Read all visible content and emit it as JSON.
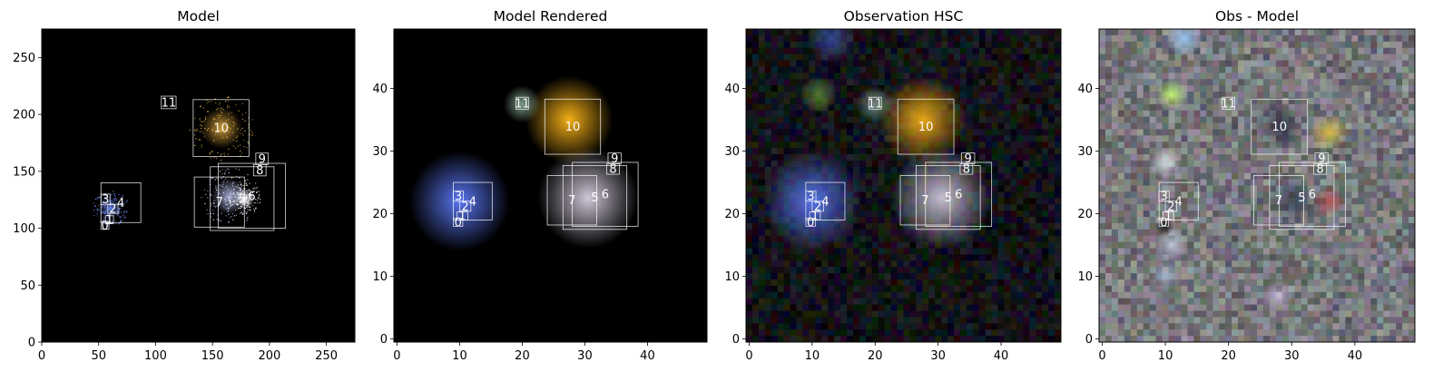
{
  "chart_data": [
    {
      "type": "heatmap",
      "title": "Model",
      "xlim": [
        0,
        275
      ],
      "ylim": [
        0,
        275
      ],
      "xticks": [
        0,
        50,
        100,
        150,
        200,
        250
      ],
      "yticks": [
        0,
        50,
        100,
        150,
        200,
        250
      ],
      "background": "#000000",
      "sources": [
        {
          "label": "0",
          "x0": 52,
          "x1": 59,
          "y0": 99,
          "y1": 106
        },
        {
          "label": "1",
          "x0": 56,
          "x1": 63,
          "y0": 104,
          "y1": 111
        },
        {
          "label": "2",
          "x0": 58,
          "x1": 67,
          "y0": 113,
          "y1": 121
        },
        {
          "label": "3",
          "x0": 52,
          "x1": 60,
          "y0": 121,
          "y1": 130
        },
        {
          "label": "4",
          "x0": 52,
          "x1": 87,
          "y0": 105,
          "y1": 140
        },
        {
          "label": "5",
          "x0": 148,
          "x1": 204,
          "y0": 98,
          "y1": 154
        },
        {
          "label": "6",
          "x0": 155,
          "x1": 214,
          "y0": 100,
          "y1": 157
        },
        {
          "label": "7",
          "x0": 134,
          "x1": 178,
          "y0": 101,
          "y1": 145
        },
        {
          "label": "8",
          "x0": 186,
          "x1": 197,
          "y0": 146,
          "y1": 156
        },
        {
          "label": "9",
          "x0": 188,
          "x1": 199,
          "y0": 156,
          "y1": 166
        },
        {
          "label": "10",
          "x0": 133,
          "x1": 182,
          "y0": 163,
          "y1": 213
        },
        {
          "label": "11",
          "x0": 105,
          "x1": 118,
          "y0": 205,
          "y1": 216
        }
      ],
      "blobs": [
        {
          "x": 158,
          "y": 188,
          "r": 18,
          "color": "#e8b040",
          "alpha": 0.85
        },
        {
          "x": 165,
          "y": 128,
          "r": 16,
          "color": "#c8d0ff",
          "alpha": 0.8
        },
        {
          "x": 178,
          "y": 126,
          "r": 9,
          "color": "#ffffff",
          "alpha": 0.95
        },
        {
          "x": 60,
          "y": 118,
          "r": 10,
          "color": "#7090ff",
          "alpha": 0.7
        }
      ]
    },
    {
      "type": "heatmap",
      "title": "Model Rendered",
      "xlim": [
        -0.5,
        49.5
      ],
      "ylim": [
        -0.5,
        49.5
      ],
      "xticks": [
        0,
        10,
        20,
        30,
        40
      ],
      "yticks": [
        0,
        10,
        20,
        30,
        40
      ],
      "background": "#000000",
      "sources": [
        {
          "label": "0",
          "x0": 9,
          "x1": 10.5,
          "y0": 18,
          "y1": 19.3
        },
        {
          "label": "1",
          "x0": 9.6,
          "x1": 11.3,
          "y0": 19,
          "y1": 20.3
        },
        {
          "label": "2",
          "x0": 10,
          "x1": 11.8,
          "y0": 20.4,
          "y1": 22
        },
        {
          "label": "3",
          "x0": 9,
          "x1": 10.6,
          "y0": 22,
          "y1": 23.6
        },
        {
          "label": "4",
          "x0": 9,
          "x1": 15.2,
          "y0": 19,
          "y1": 25
        },
        {
          "label": "5",
          "x0": 26.5,
          "x1": 36.7,
          "y0": 17.5,
          "y1": 27.7
        },
        {
          "label": "6",
          "x0": 28,
          "x1": 38.5,
          "y0": 18,
          "y1": 28.2
        },
        {
          "label": "7",
          "x0": 24,
          "x1": 31.9,
          "y0": 18.2,
          "y1": 26.1
        },
        {
          "label": "8",
          "x0": 33.5,
          "x1": 35.5,
          "y0": 26.3,
          "y1": 28
        },
        {
          "label": "9",
          "x0": 33.7,
          "x1": 35.8,
          "y0": 28,
          "y1": 29.7
        },
        {
          "label": "10",
          "x0": 23.6,
          "x1": 32.5,
          "y0": 29.5,
          "y1": 38.3
        },
        {
          "label": "11",
          "x0": 19,
          "x1": 21,
          "y0": 36.7,
          "y1": 38.6
        }
      ],
      "blobs": [
        {
          "x": 10,
          "y": 22,
          "r": 8,
          "color": "#5e7cff",
          "alpha": 0.95
        },
        {
          "x": 27.5,
          "y": 35,
          "r": 7,
          "color": "#ffb818",
          "alpha": 0.95
        },
        {
          "x": 30.5,
          "y": 22.5,
          "r": 8,
          "color": "#e6ddf0",
          "alpha": 0.9
        },
        {
          "x": 20,
          "y": 37.5,
          "r": 3,
          "color": "#9cc0a8",
          "alpha": 0.8
        }
      ]
    },
    {
      "type": "heatmap",
      "title": "Observation HSC",
      "xlim": [
        -0.5,
        49.5
      ],
      "ylim": [
        -0.5,
        49.5
      ],
      "xticks": [
        0,
        10,
        20,
        30,
        40
      ],
      "yticks": [
        0,
        10,
        20,
        30,
        40
      ],
      "background": "#0a0a12",
      "sources": [
        {
          "label": "0",
          "x0": 9,
          "x1": 10.5,
          "y0": 18,
          "y1": 19.3
        },
        {
          "label": "1",
          "x0": 9.6,
          "x1": 11.3,
          "y0": 19,
          "y1": 20.3
        },
        {
          "label": "2",
          "x0": 10,
          "x1": 11.8,
          "y0": 20.4,
          "y1": 22
        },
        {
          "label": "3",
          "x0": 9,
          "x1": 10.6,
          "y0": 22,
          "y1": 23.6
        },
        {
          "label": "4",
          "x0": 9,
          "x1": 15.2,
          "y0": 19,
          "y1": 25
        },
        {
          "label": "5",
          "x0": 26.5,
          "x1": 36.7,
          "y0": 17.5,
          "y1": 27.7
        },
        {
          "label": "6",
          "x0": 28,
          "x1": 38.5,
          "y0": 18,
          "y1": 28.2
        },
        {
          "label": "7",
          "x0": 24,
          "x1": 31.9,
          "y0": 18.2,
          "y1": 26.1
        },
        {
          "label": "8",
          "x0": 33.5,
          "x1": 35.5,
          "y0": 26.3,
          "y1": 28
        },
        {
          "label": "9",
          "x0": 33.7,
          "x1": 35.8,
          "y0": 28,
          "y1": 29.7
        },
        {
          "label": "10",
          "x0": 23.6,
          "x1": 32.5,
          "y0": 29.5,
          "y1": 38.3
        },
        {
          "label": "11",
          "x0": 19,
          "x1": 21,
          "y0": 36.7,
          "y1": 38.6
        }
      ],
      "blobs": [
        {
          "x": 10,
          "y": 22,
          "r": 8,
          "color": "#5e7cff",
          "alpha": 0.9
        },
        {
          "x": 27.5,
          "y": 35,
          "r": 7,
          "color": "#ffb818",
          "alpha": 0.9
        },
        {
          "x": 30.5,
          "y": 22.5,
          "r": 8,
          "color": "#e6ddf0",
          "alpha": 0.85
        },
        {
          "x": 20,
          "y": 37.5,
          "r": 3,
          "color": "#9cc0a8",
          "alpha": 0.7
        },
        {
          "x": 11,
          "y": 39,
          "r": 3,
          "color": "#6a9a3a",
          "alpha": 0.8
        },
        {
          "x": 13,
          "y": 48,
          "r": 4,
          "color": "#4060c0",
          "alpha": 0.7
        }
      ]
    },
    {
      "type": "heatmap",
      "title": "Obs - Model",
      "xlim": [
        -0.5,
        49.5
      ],
      "ylim": [
        -0.5,
        49.5
      ],
      "xticks": [
        0,
        10,
        20,
        30,
        40
      ],
      "yticks": [
        0,
        10,
        20,
        30,
        40
      ],
      "background": "#6e6e78",
      "sources": [
        {
          "label": "0",
          "x0": 9,
          "x1": 10.5,
          "y0": 18,
          "y1": 19.3
        },
        {
          "label": "1",
          "x0": 9.6,
          "x1": 11.3,
          "y0": 19,
          "y1": 20.3
        },
        {
          "label": "2",
          "x0": 10,
          "x1": 11.8,
          "y0": 20.4,
          "y1": 22
        },
        {
          "label": "3",
          "x0": 9,
          "x1": 10.6,
          "y0": 22,
          "y1": 23.6
        },
        {
          "label": "4",
          "x0": 9,
          "x1": 15.2,
          "y0": 19,
          "y1": 25
        },
        {
          "label": "5",
          "x0": 26.5,
          "x1": 36.7,
          "y0": 17.5,
          "y1": 27.7
        },
        {
          "label": "6",
          "x0": 28,
          "x1": 38.5,
          "y0": 18,
          "y1": 28.2
        },
        {
          "label": "7",
          "x0": 24,
          "x1": 31.9,
          "y0": 18.2,
          "y1": 26.1
        },
        {
          "label": "8",
          "x0": 33.5,
          "x1": 35.5,
          "y0": 26.3,
          "y1": 28
        },
        {
          "label": "9",
          "x0": 33.7,
          "x1": 35.8,
          "y0": 28,
          "y1": 29.7
        },
        {
          "label": "10",
          "x0": 23.6,
          "x1": 32.5,
          "y0": 29.5,
          "y1": 38.3
        },
        {
          "label": "11",
          "x0": 19,
          "x1": 21,
          "y0": 36.7,
          "y1": 38.6
        }
      ],
      "blobs": [
        {
          "x": 11,
          "y": 39,
          "r": 2.5,
          "color": "#c8ff70",
          "alpha": 0.9
        },
        {
          "x": 13,
          "y": 48,
          "r": 3,
          "color": "#a0d0ff",
          "alpha": 0.9
        },
        {
          "x": 10,
          "y": 28,
          "r": 2.5,
          "color": "#f0f0ff",
          "alpha": 0.8
        },
        {
          "x": 36,
          "y": 33,
          "r": 3,
          "color": "#f0d040",
          "alpha": 0.8
        },
        {
          "x": 28,
          "y": 34,
          "r": 4,
          "color": "#101830",
          "alpha": 0.6
        },
        {
          "x": 30,
          "y": 22,
          "r": 4,
          "color": "#1c2840",
          "alpha": 0.6
        },
        {
          "x": 36,
          "y": 22,
          "r": 2.5,
          "color": "#c02020",
          "alpha": 0.6
        },
        {
          "x": 10,
          "y": 18,
          "r": 1.5,
          "color": "#000000",
          "alpha": 0.8
        },
        {
          "x": 11,
          "y": 15,
          "r": 2.5,
          "color": "#dde8ff",
          "alpha": 0.7
        },
        {
          "x": 10,
          "y": 10,
          "r": 2.5,
          "color": "#b8c8f0",
          "alpha": 0.6
        },
        {
          "x": 28,
          "y": 7,
          "r": 2.5,
          "color": "#e8d0f8",
          "alpha": 0.6
        }
      ]
    }
  ]
}
